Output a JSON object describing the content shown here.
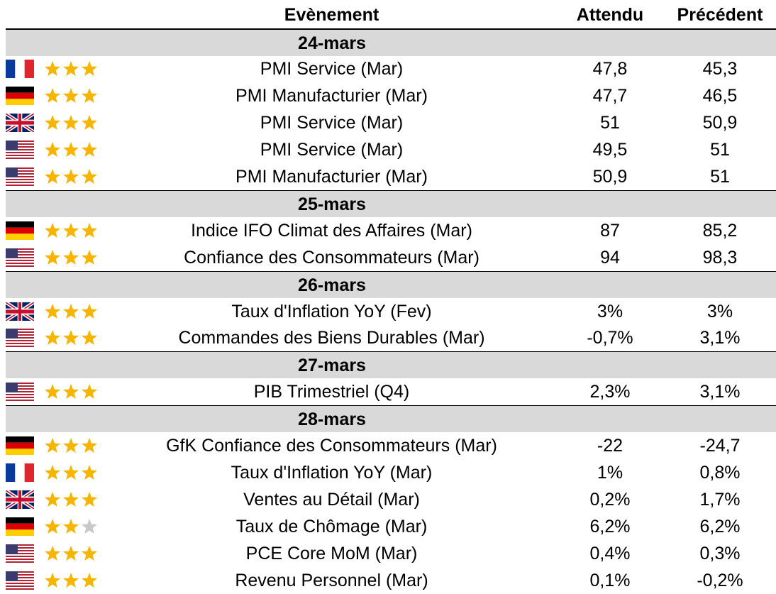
{
  "header": {
    "event": "Evènement",
    "expected": "Attendu",
    "previous": "Précédent"
  },
  "sections": [
    {
      "date": "24-mars",
      "rows": [
        [
          "PMI Service (Mar)",
          "47,8",
          "45,3"
        ],
        [
          "PMI Manufacturier (Mar)",
          "47,7",
          "46,5"
        ],
        [
          "PMI Service (Mar)",
          "51",
          "50,9"
        ],
        [
          "PMI Service (Mar)",
          "49,5",
          "51"
        ],
        [
          "PMI Manufacturier (Mar)",
          "50,9",
          "51"
        ]
      ]
    },
    {
      "date": "25-mars",
      "rows": [
        [
          "Indice IFO Climat des Affaires  (Mar)",
          "87",
          "85,2"
        ],
        [
          "Confiance des Consommateurs (Mar)",
          "94",
          "98,3"
        ]
      ]
    },
    {
      "date": "26-mars",
      "rows": [
        [
          "Taux d'Inflation YoY (Fev)",
          "3%",
          "3%"
        ],
        [
          "Commandes des Biens Durables (Mar)",
          "-0,7%",
          "3,1%"
        ]
      ]
    },
    {
      "date": "27-mars",
      "rows": [
        [
          "PIB Trimestriel (Q4)",
          "2,3%",
          "3,1%"
        ]
      ]
    },
    {
      "date": "28-mars",
      "rows": [
        [
          "GfK Confiance des Consommateurs (Mar)",
          "-22",
          "-24,7"
        ],
        [
          "Taux d'Inflation YoY (Mar)",
          "1%",
          "0,8%"
        ],
        [
          "Ventes au Détail (Mar)",
          "0,2%",
          "1,7%"
        ],
        [
          "Taux de Chômage (Mar)",
          "6,2%",
          "6,2%"
        ],
        [
          "PCE Core MoM (Mar)",
          "0,4%",
          "0,3%"
        ],
        [
          "Revenu Personnel (Mar)",
          "0,1%",
          "-0,2%"
        ]
      ]
    }
  ]
}
